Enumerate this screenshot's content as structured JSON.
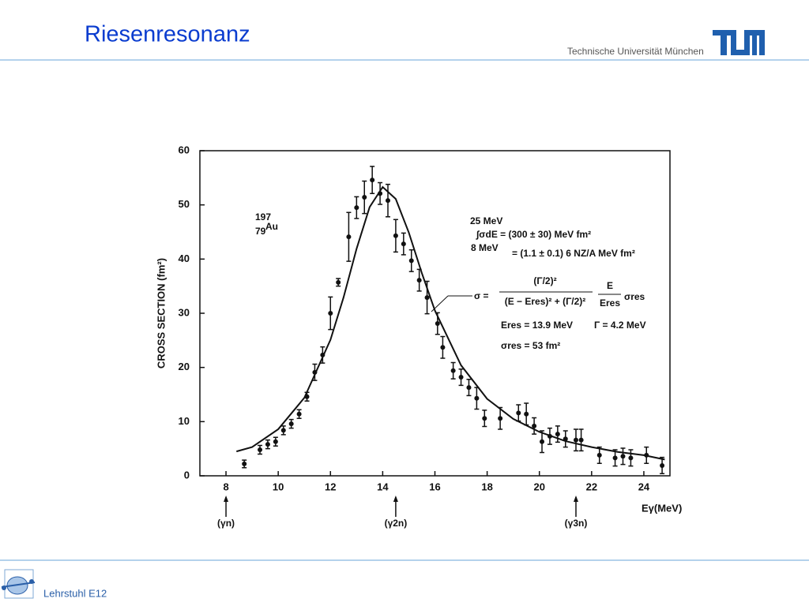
{
  "header": {
    "title": "Riesenresonanz",
    "institution": "Technische Universität München"
  },
  "footer": {
    "label": "Lehrstuhl E12"
  },
  "chart_data": {
    "type": "scatter",
    "xlabel": "Eγ(MeV)",
    "ylabel": "CROSS SECTION (fm²)",
    "xlim": [
      7,
      25
    ],
    "ylim": [
      0,
      60
    ],
    "xticks": [
      8,
      10,
      12,
      14,
      16,
      18,
      20,
      22,
      24
    ],
    "yticks": [
      0,
      10,
      20,
      30,
      40,
      50,
      60
    ],
    "color": "#111111",
    "points": {
      "x": [
        8.7,
        9.3,
        9.6,
        9.9,
        10.2,
        10.5,
        10.8,
        11.1,
        11.4,
        11.7,
        12.0,
        12.3,
        12.7,
        13.0,
        13.3,
        13.6,
        13.9,
        14.2,
        14.5,
        14.8,
        15.1,
        15.4,
        15.7,
        16.1,
        16.3,
        16.7,
        17.0,
        17.3,
        17.6,
        17.9,
        18.5,
        19.2,
        19.5,
        19.8,
        20.1,
        20.4,
        20.7,
        21.0,
        21.4,
        21.6,
        22.3,
        22.9,
        23.2,
        23.5,
        24.1,
        24.7
      ],
      "values": [
        2.2,
        4.8,
        5.8,
        6.3,
        8.4,
        9.6,
        11.4,
        14.6,
        19.1,
        22.3,
        30.0,
        35.7,
        44.1,
        49.5,
        51.4,
        54.6,
        52.1,
        50.8,
        44.3,
        42.8,
        39.7,
        36.1,
        32.9,
        28.1,
        23.7,
        19.4,
        18.2,
        16.3,
        14.3,
        10.6,
        10.6,
        11.6,
        11.4,
        9.2,
        6.3,
        7.3,
        7.7,
        6.8,
        6.6,
        6.6,
        3.8,
        3.3,
        3.6,
        3.3,
        3.8,
        1.9
      ],
      "errors": [
        0.7,
        0.8,
        0.8,
        0.8,
        0.8,
        0.8,
        0.8,
        0.8,
        1.5,
        1.5,
        3.0,
        0.7,
        4.5,
        2.0,
        3.0,
        2.5,
        2.0,
        3.0,
        3.0,
        2.0,
        2.0,
        2.0,
        3.0,
        2.0,
        2.0,
        1.5,
        1.5,
        1.5,
        2.0,
        1.5,
        2.0,
        1.5,
        2.0,
        1.5,
        2.0,
        1.5,
        1.5,
        1.5,
        2.0,
        2.0,
        1.5,
        1.5,
        1.5,
        1.5,
        1.5,
        1.5
      ]
    },
    "curve": {
      "x": [
        8.4,
        9,
        10,
        11,
        12,
        12.5,
        13,
        13.5,
        14,
        14.5,
        15,
        15.5,
        16,
        17,
        18,
        19,
        20,
        21,
        22,
        23,
        24,
        24.8
      ],
      "values": [
        4.5,
        5.3,
        8.6,
        14.4,
        25.1,
        32.9,
        41.9,
        49.6,
        53.3,
        51.1,
        44.9,
        37.4,
        30.5,
        20.4,
        14.2,
        10.5,
        8.1,
        6.4,
        5.3,
        4.4,
        3.8,
        3.0
      ]
    },
    "thresholds": [
      {
        "x": 8,
        "label": "(γn)"
      },
      {
        "x": 14.5,
        "label": "(γ2n)"
      },
      {
        "x": 21.4,
        "label": "(γ3n)"
      }
    ],
    "nucleus": {
      "mass": "197",
      "charge": "79",
      "symbol": "Au"
    },
    "integral": {
      "upper": "25 MeV",
      "lower": "8 MeV",
      "line1": "∫σdE = (300 ± 30) MeV fm²",
      "line2": "= (1.1 ± 0.1) 6 NZ/A  MeV fm²"
    },
    "formula": {
      "lhs": "σ =",
      "numerator": "(Γ/2)²",
      "denominator": "(E − Eres)² + (Γ/2)²",
      "factor_num": "E",
      "factor_den": "Eres",
      "tail": "σres"
    },
    "params": [
      "Eres = 13.9 MeV",
      "Γ = 4.2 MeV",
      "σres = 53 fm²"
    ]
  }
}
